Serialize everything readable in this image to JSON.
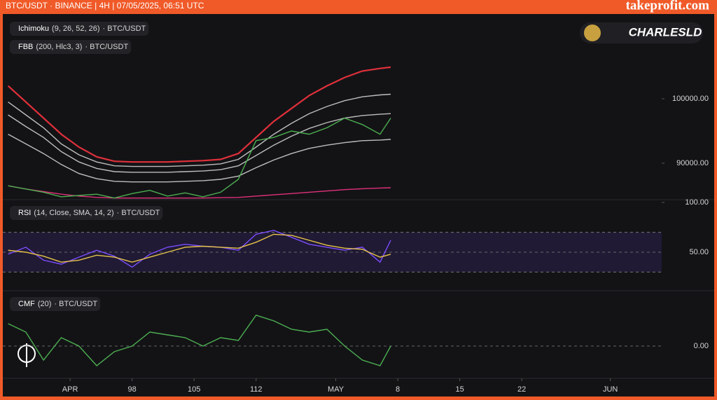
{
  "header": {
    "title": "BTC/USDT · BINANCE | 4H | 07/05/2025, 06:51 UTC",
    "brand": "takeprofit.com",
    "watermark": "CHARLESLD"
  },
  "chart_data": [
    {
      "type": "line",
      "indicators": [
        {
          "name": "Ichimoku",
          "params": "(9, 26, 52, 26)",
          "symbol": "· BTC/USDT"
        },
        {
          "name": "FBB",
          "params": "(200, Hlc3, 3)",
          "symbol": "· BTC/USDT"
        }
      ],
      "x": [
        84,
        86,
        88,
        90,
        92,
        94,
        96,
        98,
        100,
        102,
        104,
        106,
        108,
        110,
        112,
        114,
        116,
        118,
        120,
        122,
        124,
        126,
        127.2
      ],
      "xlim": [
        83.4,
        157.8
      ],
      "ylim": [
        84350,
        112930
      ],
      "yticks": [
        {
          "value": 90000,
          "label": "90000.00"
        },
        {
          "value": 100000,
          "label": "100000.00"
        }
      ],
      "series": [
        {
          "color": "#e0303a",
          "values": [
            102000,
            99500,
            97000,
            94500,
            92500,
            91000,
            90300,
            90200,
            90200,
            90200,
            90300,
            90400,
            90600,
            91500,
            94000,
            96500,
            98500,
            100500,
            102000,
            103300,
            104300,
            104700,
            104900
          ]
        },
        {
          "color": "#bdbdbd",
          "values": [
            99500,
            97500,
            95500,
            93000,
            91300,
            90200,
            89600,
            89500,
            89500,
            89500,
            89600,
            89700,
            89900,
            90600,
            92500,
            94500,
            96200,
            97700,
            98800,
            99700,
            100300,
            100600,
            100700
          ]
        },
        {
          "color": "#bdbdbd",
          "values": [
            97500,
            95700,
            94000,
            91800,
            90200,
            89200,
            88700,
            88600,
            88600,
            88600,
            88700,
            88800,
            89000,
            89600,
            91200,
            92800,
            94200,
            95400,
            96300,
            97000,
            97400,
            97600,
            97700
          ]
        },
        {
          "color": "#bdbdbd",
          "values": [
            94500,
            93000,
            91500,
            89800,
            88400,
            87600,
            87200,
            87100,
            87100,
            87100,
            87200,
            87300,
            87500,
            88000,
            89300,
            90500,
            91500,
            92300,
            92800,
            93200,
            93500,
            93600,
            93700
          ]
        },
        {
          "color": "#e0307a",
          "values": [
            86500,
            86000,
            85600,
            85200,
            84900,
            84700,
            84600,
            84600,
            84600,
            84600,
            84600,
            84600,
            84650,
            84700,
            84900,
            85100,
            85300,
            85500,
            85700,
            85900,
            86050,
            86150,
            86200
          ]
        },
        {
          "color": "#4caf50",
          "values": [
            86500,
            86000,
            85500,
            84800,
            85000,
            85200,
            84600,
            85300,
            85800,
            84900,
            85400,
            84800,
            85500,
            87500,
            93500,
            94000,
            95000,
            94500,
            95500,
            97000,
            96000,
            94500,
            97000
          ]
        }
      ]
    },
    {
      "type": "line",
      "indicators": [
        {
          "name": "RSI",
          "params": "(14, Close, SMA, 14, 2)",
          "symbol": "· BTC/USDT"
        }
      ],
      "x": [
        84,
        86,
        88,
        90,
        92,
        94,
        96,
        98,
        100,
        102,
        104,
        106,
        108,
        110,
        112,
        114,
        116,
        118,
        120,
        122,
        124,
        126,
        127.2
      ],
      "xlim": [
        83.4,
        157.8
      ],
      "ylim": [
        11.3,
        102.8
      ],
      "yticks": [
        {
          "value": 50,
          "label": "50.00"
        },
        {
          "value": 100,
          "label": "100.00"
        }
      ],
      "band": [
        30,
        70
      ],
      "series": [
        {
          "color": "#7c4dff",
          "values": [
            48,
            55,
            42,
            38,
            45,
            52,
            46,
            35,
            48,
            55,
            58,
            56,
            55,
            52,
            68,
            72,
            65,
            58,
            55,
            52,
            55,
            40,
            62
          ]
        },
        {
          "color": "#e6c34a",
          "values": [
            52,
            50,
            46,
            40,
            42,
            47,
            45,
            40,
            45,
            50,
            55,
            56,
            55,
            54,
            60,
            68,
            67,
            62,
            57,
            54,
            53,
            45,
            48
          ]
        }
      ]
    },
    {
      "type": "line",
      "indicators": [
        {
          "name": "CMF",
          "params": "(20)",
          "symbol": "· BTC/USDT"
        }
      ],
      "x": [
        84,
        86,
        88,
        90,
        92,
        94,
        96,
        98,
        100,
        102,
        104,
        106,
        108,
        110,
        112,
        114,
        116,
        118,
        120,
        122,
        124,
        126,
        127.2
      ],
      "xlim": [
        83.4,
        157.8
      ],
      "ylim": [
        -0.115,
        0.1975
      ],
      "yticks": [
        {
          "value": 0,
          "label": "0.00"
        }
      ],
      "xticks": [
        {
          "value": 91,
          "label": "APR"
        },
        98,
        105,
        112,
        {
          "value": 121,
          "label": "MAY"
        },
        {
          "value": 128,
          "label": "8"
        },
        {
          "value": 135,
          "label": "15"
        },
        {
          "value": 142,
          "label": "22"
        },
        {
          "value": 152,
          "label": "JUN"
        }
      ],
      "series": [
        {
          "color": "#4caf50",
          "values": [
            0.08,
            0.05,
            -0.05,
            0.03,
            0.0,
            -0.07,
            -0.02,
            0.0,
            0.05,
            0.04,
            0.03,
            0.0,
            0.03,
            0.02,
            0.11,
            0.09,
            0.06,
            0.05,
            0.06,
            0.0,
            -0.05,
            -0.07,
            0.0
          ]
        }
      ]
    }
  ]
}
